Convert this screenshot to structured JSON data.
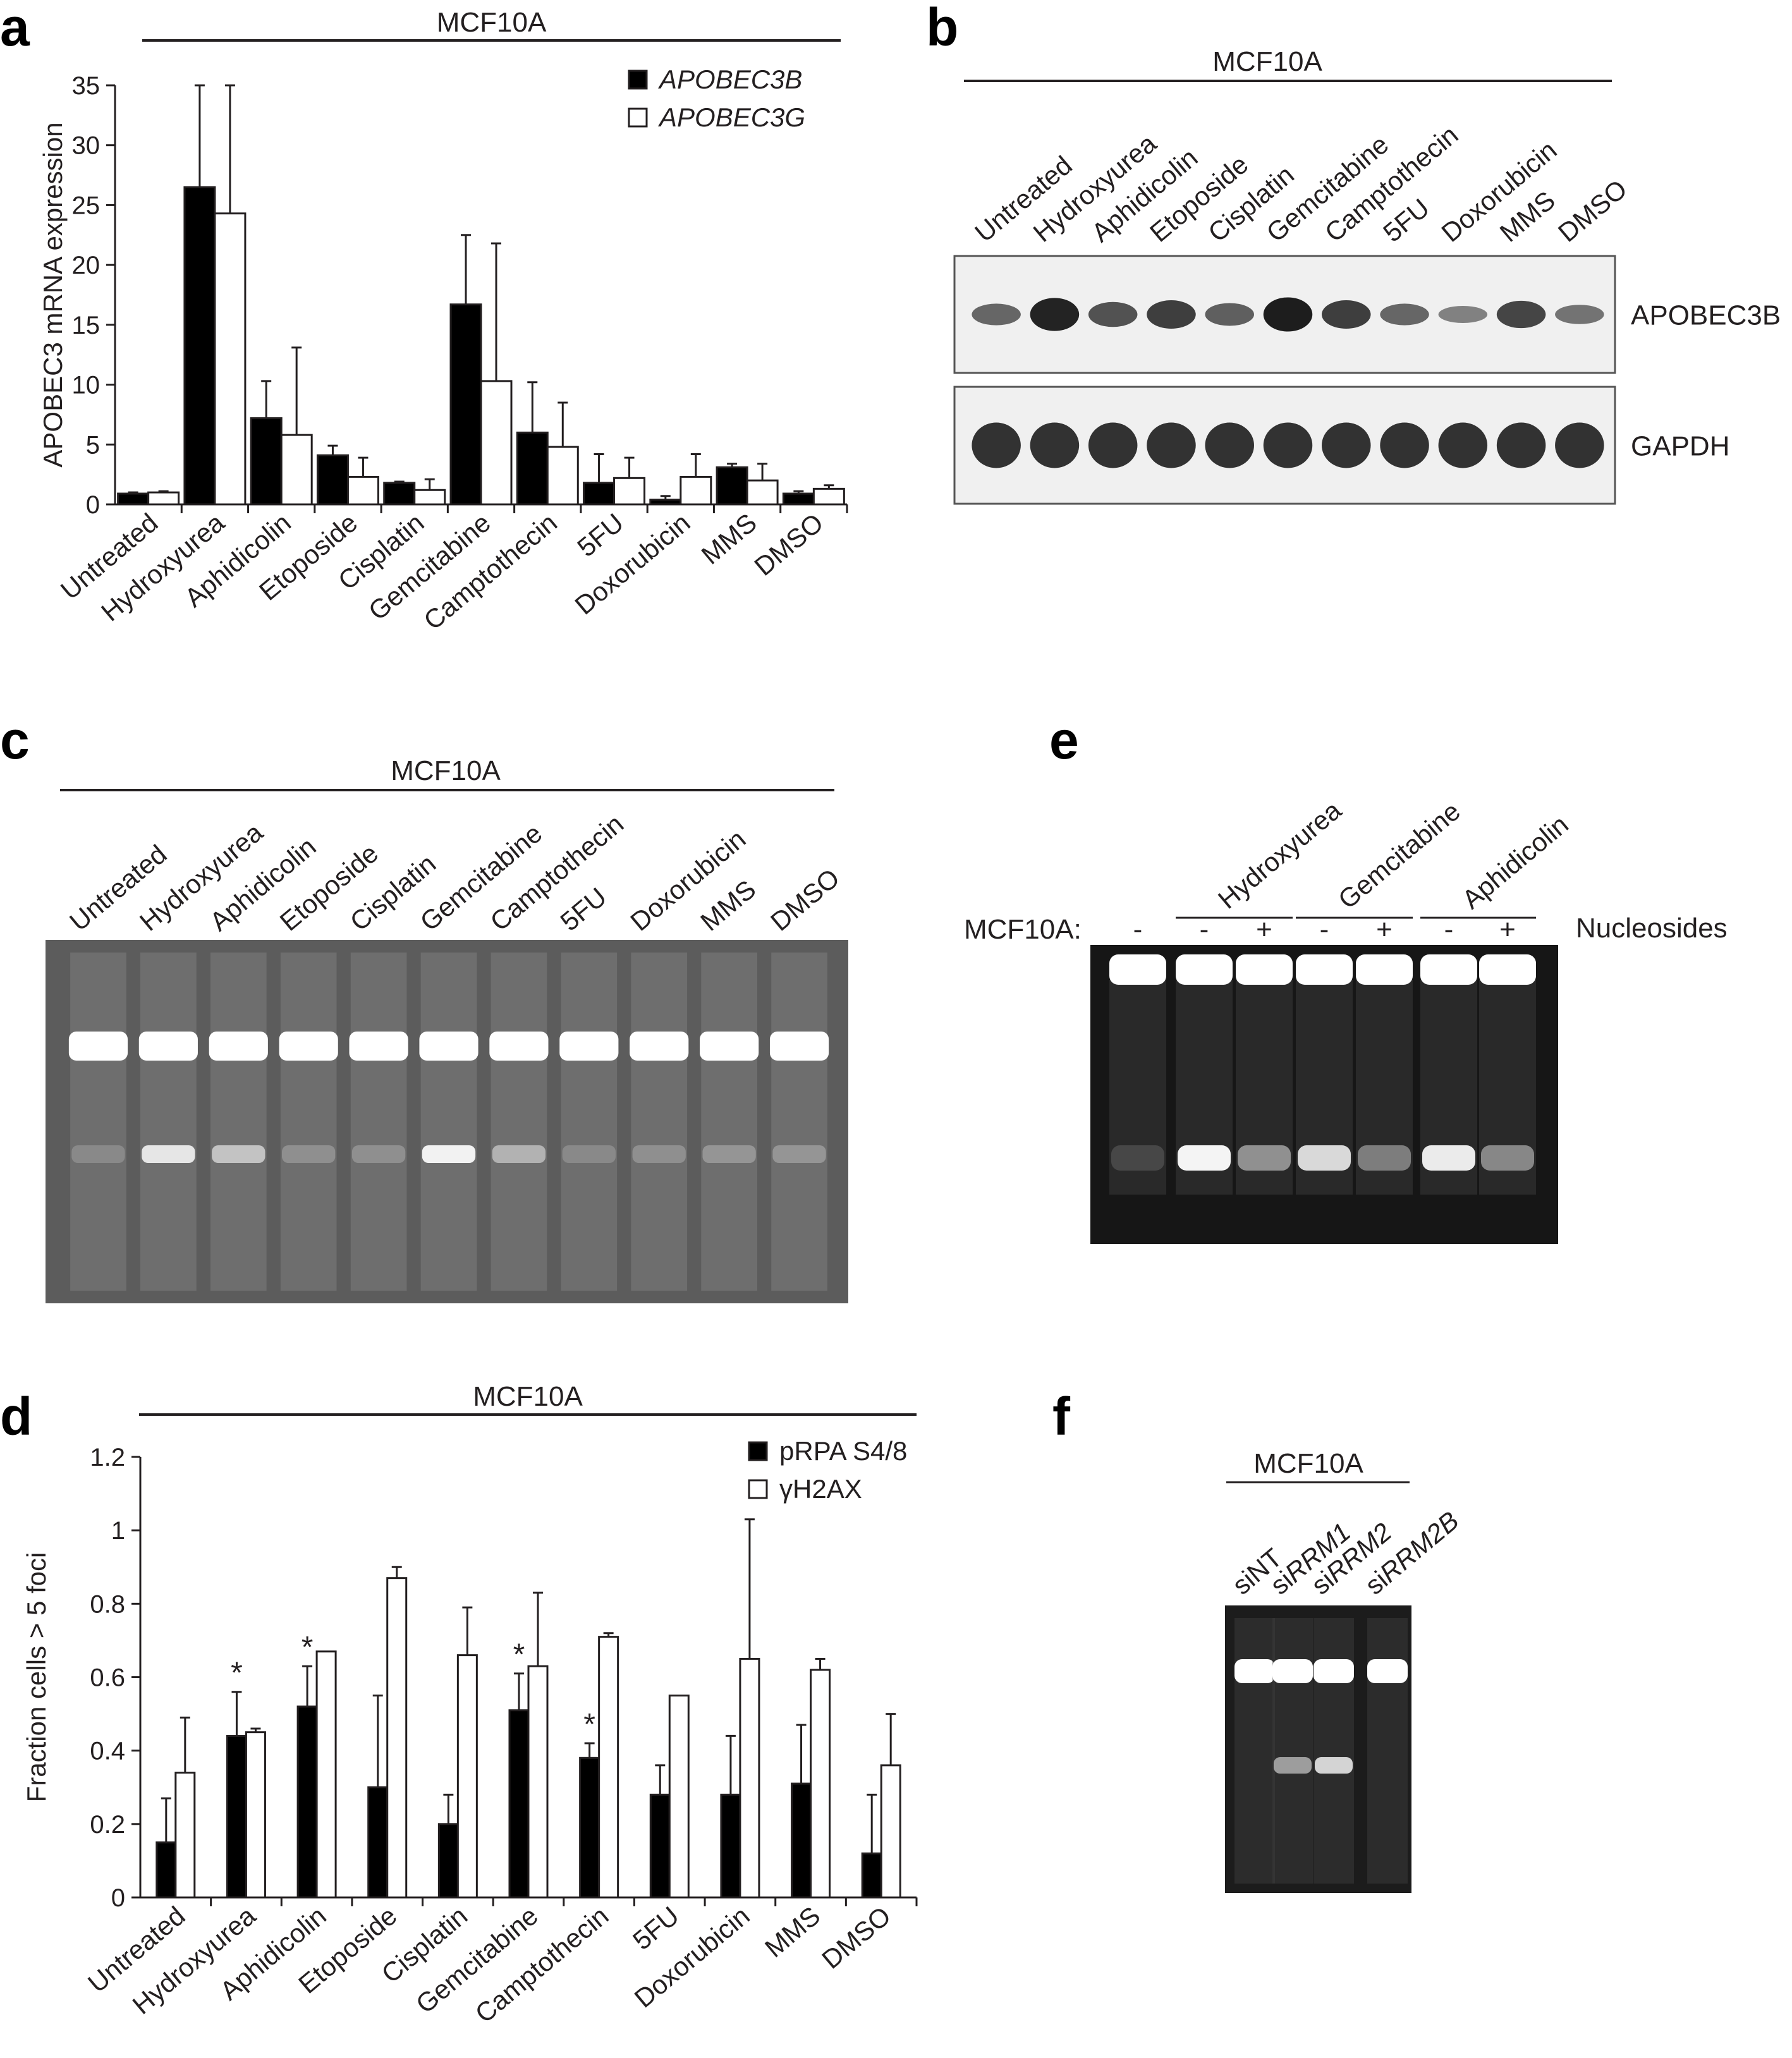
{
  "figure": {
    "panels": [
      {
        "letter": "a"
      },
      {
        "letter": "b"
      },
      {
        "letter": "c"
      },
      {
        "letter": "d"
      },
      {
        "letter": "e"
      },
      {
        "letter": "f"
      }
    ]
  },
  "chart_data": [
    {
      "panel": "a",
      "type": "bar",
      "header": "MCF10A",
      "ylabel": "APOBEC3 mRNA expression",
      "ylim": [
        0,
        35
      ],
      "yticks": [
        "0",
        "5",
        "10",
        "15",
        "20",
        "25",
        "30",
        "35"
      ],
      "categories": [
        "Untreated",
        "Hydroxyurea",
        "Aphidicolin",
        "Etoposide",
        "Cisplatin",
        "Gemcitabine",
        "Camptothecin",
        "5FU",
        "Doxorubicin",
        "MMS",
        "DMSO"
      ],
      "series": [
        {
          "name": "APOBEC3B",
          "color": "#000000",
          "values": [
            0.9,
            26.5,
            7.2,
            4.1,
            1.8,
            16.7,
            6.0,
            1.8,
            0.4,
            3.1,
            0.9
          ],
          "errors": [
            0.1,
            8.6,
            3.1,
            0.8,
            0.1,
            5.8,
            4.2,
            2.4,
            0.3,
            0.3,
            0.2
          ]
        },
        {
          "name": "APOBEC3G",
          "color": "#ffffff",
          "values": [
            1.0,
            24.3,
            5.8,
            2.3,
            1.2,
            10.3,
            4.8,
            2.2,
            2.3,
            2.0,
            1.3
          ],
          "errors": [
            0.1,
            10.8,
            7.3,
            1.6,
            0.9,
            11.5,
            3.7,
            1.7,
            1.9,
            1.4,
            0.3
          ]
        }
      ],
      "legend": "top-right"
    },
    {
      "panel": "d",
      "type": "bar",
      "header": "MCF10A",
      "ylabel": "Fraction cells > 5 foci",
      "ylim": [
        0,
        1.2
      ],
      "yticks": [
        "0",
        "0.2",
        "0.4",
        "0.6",
        "0.8",
        "1",
        "1.2"
      ],
      "categories": [
        "Untreated",
        "Hydroxyurea",
        "Aphidicolin",
        "Etoposide",
        "Cisplatin",
        "Gemcitabine",
        "Camptothecin",
        "5FU",
        "Doxorubicin",
        "MMS",
        "DMSO"
      ],
      "series": [
        {
          "name": "pRPA S4/8",
          "color": "#000000",
          "values": [
            0.15,
            0.44,
            0.52,
            0.3,
            0.2,
            0.51,
            0.38,
            0.28,
            0.28,
            0.31,
            0.12
          ],
          "errors": [
            0.12,
            0.12,
            0.11,
            0.25,
            0.08,
            0.1,
            0.04,
            0.08,
            0.16,
            0.16,
            0.16
          ]
        },
        {
          "name": "γH2AX",
          "color": "#ffffff",
          "values": [
            0.34,
            0.45,
            0.67,
            0.87,
            0.66,
            0.63,
            0.71,
            0.55,
            0.65,
            0.62,
            0.36
          ],
          "errors": [
            0.15,
            0.01,
            0.0,
            0.03,
            0.13,
            0.2,
            0.01,
            0.0,
            0.38,
            0.03,
            0.14
          ]
        }
      ],
      "significance": {
        "marker": "*",
        "color": "#d34a2a",
        "categories": [
          "Hydroxyurea",
          "Aphidicolin",
          "Gemcitabine",
          "Camptothecin"
        ]
      },
      "legend": "top-right"
    }
  ],
  "blot_b": {
    "header": "MCF10A",
    "lanes": [
      "Untreated",
      "Hydroxyurea",
      "Aphidicolin",
      "Etoposide",
      "Cisplatin",
      "Gemcitabine",
      "Camptothecin",
      "5FU",
      "Doxorubicin",
      "MMS",
      "DMSO"
    ],
    "rows": [
      {
        "label": "APOBEC3B",
        "intensity": [
          0.45,
          0.95,
          0.6,
          0.75,
          0.5,
          1.0,
          0.75,
          0.45,
          0.25,
          0.7,
          0.35
        ]
      },
      {
        "label": "GAPDH",
        "intensity": [
          1,
          1,
          1,
          1,
          1,
          1,
          1,
          1,
          1,
          1,
          1
        ]
      }
    ]
  },
  "gel_c": {
    "header": "MCF10A",
    "lanes": [
      "Untreated",
      "Hydroxyurea",
      "Aphidicolin",
      "Etoposide",
      "Cisplatin",
      "Gemcitabine",
      "Camptothecin",
      "5FU",
      "Doxorubicin",
      "MMS",
      "DMSO"
    ],
    "product_band": [
      0.05,
      0.85,
      0.55,
      0.1,
      0.1,
      0.95,
      0.4,
      0.05,
      0.1,
      0.15,
      0.15
    ]
  },
  "gel_e": {
    "groups": [
      "Hydroxyurea",
      "Gemcitabine",
      "Aphidicolin"
    ],
    "row_label": "MCF10A:",
    "signs": [
      "-",
      "-",
      "+",
      "-",
      "+",
      "-",
      "+"
    ],
    "right_label": "Nucleosides",
    "product_band": [
      0.05,
      1.0,
      0.45,
      0.85,
      0.35,
      0.95,
      0.4
    ]
  },
  "gel_f": {
    "header": "MCF10A",
    "lanes": [
      {
        "prefix": "si",
        "name": "NT"
      },
      {
        "prefix": "si",
        "name": "RRM1"
      },
      {
        "prefix": "si",
        "name": "RRM2"
      },
      {
        "prefix": "si",
        "name": "RRM2B"
      }
    ],
    "product_band": [
      0.0,
      0.45,
      0.8,
      0.0
    ]
  }
}
